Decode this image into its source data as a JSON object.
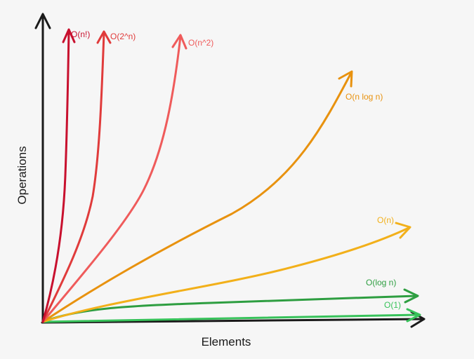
{
  "axes": {
    "x_label": "Elements",
    "y_label": "Operations"
  },
  "curves": [
    {
      "label": "O(n!)",
      "color": "#c8102e"
    },
    {
      "label": "O(2^n)",
      "color": "#e03b3b"
    },
    {
      "label": "O(n^2)",
      "color": "#ef5b5b"
    },
    {
      "label": "O(n log n)",
      "color": "#e8920f"
    },
    {
      "label": "O(n)",
      "color": "#f2b01a"
    },
    {
      "label": "O(log n)",
      "color": "#2e9e41"
    },
    {
      "label": "O(1)",
      "color": "#37c25a"
    }
  ]
}
